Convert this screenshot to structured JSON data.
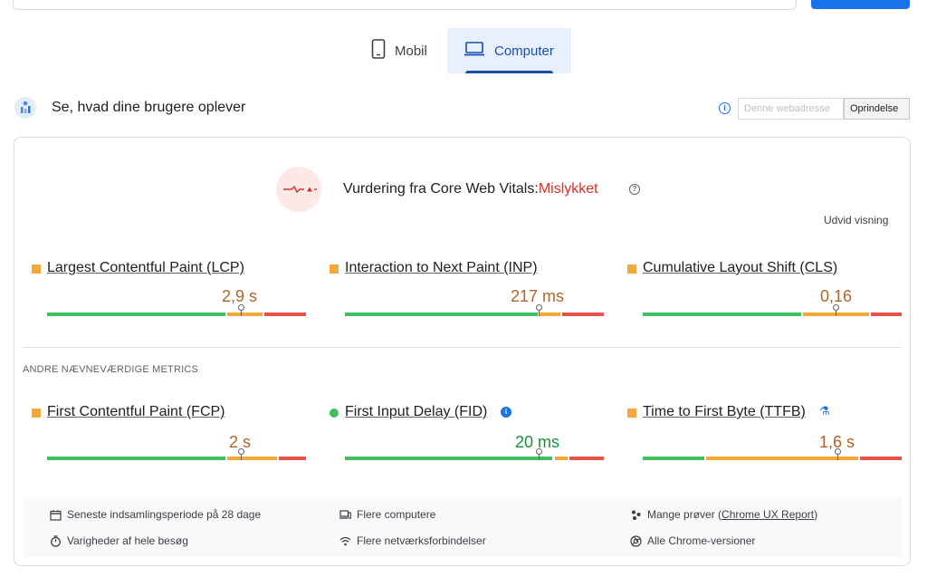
{
  "tabs": [
    {
      "label": "Mobil",
      "icon": "phone-icon",
      "active": false
    },
    {
      "label": "Computer",
      "icon": "laptop-icon",
      "active": true
    }
  ],
  "section": {
    "title": "Se, hvad dine brugere oplever",
    "url_placeholder": "Denne webadresse",
    "origin_label": "Oprindelse"
  },
  "cwv": {
    "title": "Vurdering fra Core Web Vitals:",
    "status": "Mislykket",
    "status_color": "#d93025",
    "expand_label": "Udvid visning"
  },
  "metrics": [
    {
      "name": "Largest Contentful Paint (LCP)",
      "value": "2,9 s",
      "status": "orange",
      "pin": 0.75
    },
    {
      "name": "Interaction to Next Paint (INP)",
      "value": "217 ms",
      "status": "orange",
      "pin": 0.75
    },
    {
      "name": "Cumulative Layout Shift (CLS)",
      "value": "0,16",
      "status": "orange",
      "pin": 0.75
    }
  ],
  "other_heading": "ANDRE NÆVNEVÆRDIGE METRICS",
  "other_metrics": [
    {
      "name": "First Contentful Paint (FCP)",
      "value": "2 s",
      "status": "orange",
      "pin": 0.75
    },
    {
      "name": "First Input Delay (FID)",
      "value": "20 ms",
      "status": "green",
      "pin": 0.75
    },
    {
      "name": "Time to First Byte (TTFB)",
      "value": "1,6 s",
      "status": "orange",
      "pin": 0.75
    }
  ],
  "footer": {
    "period": "Seneste indsamlingsperiode på 28 dage",
    "duration": "Varigheder af hele besøg",
    "devices": "Flere computere",
    "network": "Flere netværksforbindelser",
    "samples_prefix": "Mange prøver (",
    "samples_link": "Chrome UX Report",
    "samples_suffix": ")",
    "versions": "Alle Chrome-versioner"
  },
  "colors": {
    "good": "#3fbf5f",
    "needs_improvement": "#f4a83a",
    "poor": "#e5534b",
    "accent": "#1a73e8"
  }
}
